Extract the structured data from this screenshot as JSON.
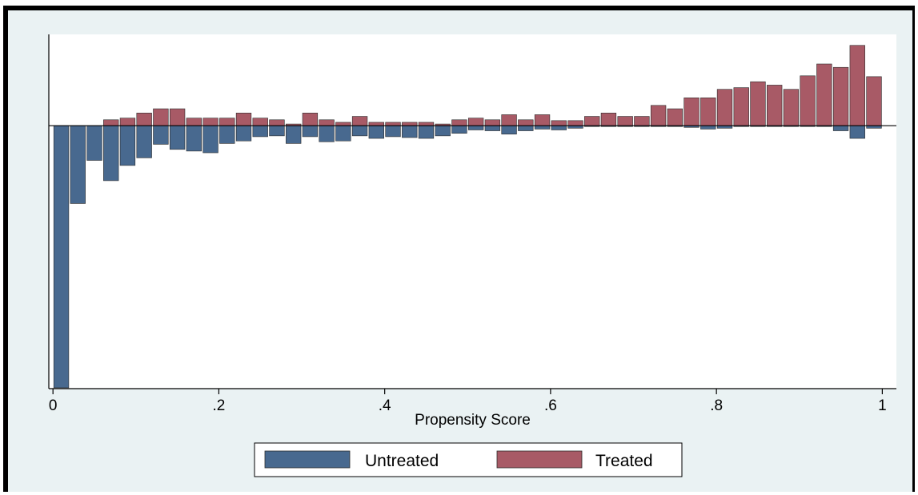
{
  "chart_data": {
    "type": "bar",
    "subtype": "mirrored histogram",
    "title": "",
    "xlabel": "Propensity Score",
    "ylabel": "",
    "xlim": [
      -0.005,
      1.017
    ],
    "ylim": [
      -0.311,
      0.108
    ],
    "xticks": [
      {
        "value": 0,
        "label": "0"
      },
      {
        "value": 0.2,
        "label": ".2"
      },
      {
        "value": 0.4,
        "label": ".4"
      },
      {
        "value": 0.6,
        "label": ".6"
      },
      {
        "value": 0.8,
        "label": ".8"
      },
      {
        "value": 1,
        "label": "1"
      }
    ],
    "y_tick_labels_shown": false,
    "grid": false,
    "legend_position": "bottom",
    "bin_width": 0.02,
    "x": [
      0.01,
      0.03,
      0.05,
      0.07,
      0.09,
      0.11,
      0.13,
      0.15,
      0.17,
      0.19,
      0.21,
      0.23,
      0.25,
      0.27,
      0.29,
      0.31,
      0.33,
      0.35,
      0.37,
      0.39,
      0.41,
      0.43,
      0.45,
      0.47,
      0.49,
      0.51,
      0.53,
      0.55,
      0.57,
      0.59,
      0.61,
      0.63,
      0.65,
      0.67,
      0.69,
      0.71,
      0.73,
      0.75,
      0.77,
      0.79,
      0.81,
      0.83,
      0.85,
      0.87,
      0.89,
      0.91,
      0.93,
      0.95,
      0.97,
      0.99
    ],
    "series": [
      {
        "name": "Untreated",
        "color": "#48698f",
        "values": [
          -0.31,
          -0.092,
          -0.041,
          -0.065,
          -0.047,
          -0.038,
          -0.022,
          -0.028,
          -0.03,
          -0.032,
          -0.021,
          -0.018,
          -0.013,
          -0.012,
          -0.021,
          -0.013,
          -0.019,
          -0.018,
          -0.012,
          -0.015,
          -0.013,
          -0.014,
          -0.015,
          -0.012,
          -0.009,
          -0.005,
          -0.006,
          -0.01,
          -0.006,
          -0.004,
          -0.005,
          -0.003,
          -0.001,
          -0.001,
          -0.001,
          -0.001,
          -0.001,
          -0.001,
          -0.002,
          -0.004,
          -0.003,
          -0.001,
          -0.001,
          -0.001,
          -0.001,
          -0.001,
          -0.001,
          -0.006,
          -0.015,
          -0.003
        ]
      },
      {
        "name": "Treated",
        "color": "#a85a66",
        "values": [
          0,
          0,
          0,
          0.007,
          0.009,
          0.015,
          0.02,
          0.02,
          0.009,
          0.009,
          0.009,
          0.015,
          0.009,
          0.007,
          0.002,
          0.015,
          0.007,
          0.004,
          0.011,
          0.004,
          0.004,
          0.004,
          0.004,
          0.002,
          0.007,
          0.009,
          0.007,
          0.013,
          0.007,
          0.013,
          0.006,
          0.006,
          0.011,
          0.015,
          0.011,
          0.011,
          0.024,
          0.02,
          0.033,
          0.033,
          0.043,
          0.045,
          0.052,
          0.048,
          0.043,
          0.059,
          0.073,
          0.069,
          0.095,
          0.058
        ]
      }
    ]
  },
  "legend": {
    "items": [
      {
        "label": "Untreated",
        "color": "#48698f"
      },
      {
        "label": "Treated",
        "color": "#a85a66"
      }
    ]
  },
  "colors": {
    "background": "#eaf2f3",
    "plot_background": "#ffffff",
    "untreated": "#48698f",
    "treated": "#a85a66"
  }
}
